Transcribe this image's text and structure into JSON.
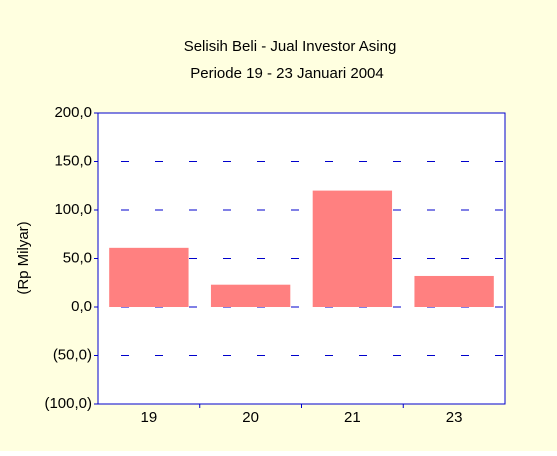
{
  "chart_data": {
    "type": "bar",
    "title": "Selisih Beli - Jual Investor Asing",
    "subtitle": "Periode 19 - 23 Januari 2004",
    "y_label": "(Rp Milyar)",
    "categories": [
      "19",
      "20",
      "21",
      "23"
    ],
    "values": [
      61,
      23,
      120,
      32
    ],
    "color": "#ff8080",
    "ylim": [
      -100,
      200
    ],
    "yticks": [
      {
        "value": -100,
        "label": "(100,0)"
      },
      {
        "value": -50,
        "label": "(50,0)"
      },
      {
        "value": 0,
        "label": "0,0"
      },
      {
        "value": 50,
        "label": "50,0"
      },
      {
        "value": 100,
        "label": "100,0"
      },
      {
        "value": 150,
        "label": "150,0"
      },
      {
        "value": 200,
        "label": "200,0"
      }
    ],
    "grid": true
  }
}
